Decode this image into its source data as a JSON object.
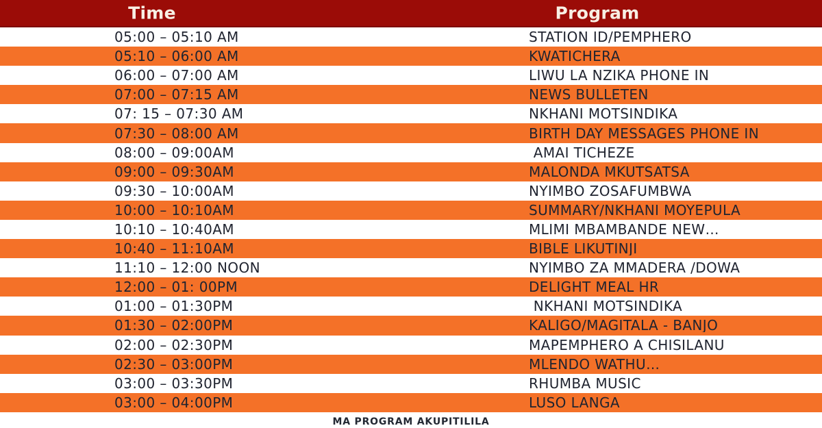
{
  "table": {
    "headers": {
      "time": "Time",
      "program": "Program"
    },
    "rows": [
      {
        "time": "05:00 – 05:10 AM",
        "program": "STATION ID/PEMPHERO"
      },
      {
        "time": "05:10 – 06:00 AM",
        "program": "KWATICHERA"
      },
      {
        "time": "06:00 – 07:00 AM",
        "program": "LIWU LA NZIKA PHONE IN"
      },
      {
        "time": "07:00 – 07:15 AM",
        "program": "NEWS BULLETEN"
      },
      {
        "time": "07: 15 – 07:30 AM",
        "program": "NKHANI MOTSINDIKA"
      },
      {
        "time": "07:30 – 08:00 AM",
        "program": "BIRTH DAY MESSAGES PHONE IN"
      },
      {
        "time": "08:00 – 09:00AM",
        "program": " AMAI TICHEZE"
      },
      {
        "time": "09:00 – 09:30AM",
        "program": "MALONDA MKUTSATSA"
      },
      {
        "time": "09:30 – 10:00AM",
        "program": "NYIMBO ZOSAFUMBWA"
      },
      {
        "time": "10:00 – 10:10AM",
        "program": "SUMMARY/NKHANI MOYEPULA"
      },
      {
        "time": "10:10 – 10:40AM",
        "program": "MLIMI MBAMBANDE NEW…"
      },
      {
        "time": "10:40 – 11:10AM",
        "program": "BIBLE LIKUTINJI"
      },
      {
        "time": "11:10 – 12:00 NOON",
        "program": "NYIMBO ZA MMADERA /DOWA"
      },
      {
        "time": "12:00 – 01: 00PM",
        "program": "DELIGHT MEAL HR"
      },
      {
        "time": "01:00 – 01:30PM",
        "program": " NKHANI MOTSINDIKA"
      },
      {
        "time": "01:30 – 02:00PM",
        "program": "KALIGO/MAGITALA - BANJO"
      },
      {
        "time": "02:00 – 02:30PM",
        "program": "MAPEMPHERO A CHISILANU"
      },
      {
        "time": "02:30 – 03:00PM",
        "program": "MLENDO WATHU…"
      },
      {
        "time": "03:00 – 03:30PM",
        "program": "RHUMBA MUSIC"
      },
      {
        "time": "03:00 – 04:00PM",
        "program": "LUSO LANGA"
      }
    ]
  },
  "footer": {
    "note": "MA PROGRAM AKUPITILILA"
  },
  "colors": {
    "header_bg": "#9B0C07",
    "header_border": "#7D0A05",
    "header_text": "#F8EFE4",
    "row_bg": "#FFFFFF",
    "row_alt_bg": "#F47128",
    "row_text": "#202430"
  }
}
